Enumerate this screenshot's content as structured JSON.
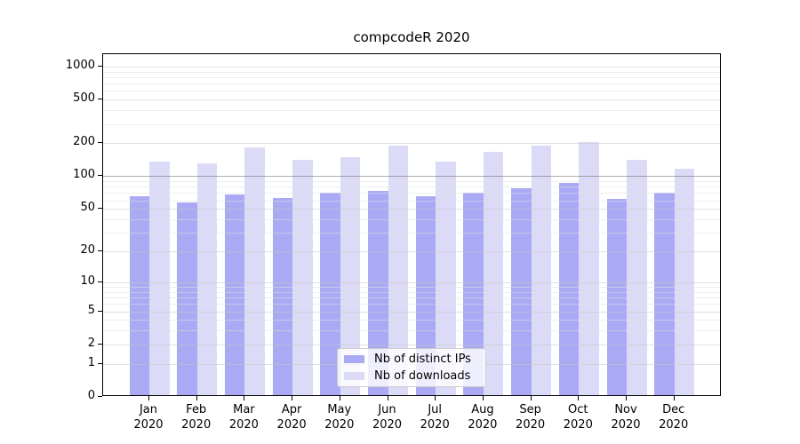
{
  "chart_data": {
    "type": "bar",
    "title": "compcodeR 2020",
    "categories": [
      {
        "month": "Jan",
        "year": "2020"
      },
      {
        "month": "Feb",
        "year": "2020"
      },
      {
        "month": "Mar",
        "year": "2020"
      },
      {
        "month": "Apr",
        "year": "2020"
      },
      {
        "month": "May",
        "year": "2020"
      },
      {
        "month": "Jun",
        "year": "2020"
      },
      {
        "month": "Jul",
        "year": "2020"
      },
      {
        "month": "Aug",
        "year": "2020"
      },
      {
        "month": "Sep",
        "year": "2020"
      },
      {
        "month": "Oct",
        "year": "2020"
      },
      {
        "month": "Nov",
        "year": "2020"
      },
      {
        "month": "Dec",
        "year": "2020"
      }
    ],
    "series": [
      {
        "name": "Nb of distinct IPs",
        "color": "#a9a9f4",
        "values": [
          66,
          57,
          68,
          63,
          71,
          73,
          66,
          71,
          78,
          86,
          62,
          70
        ]
      },
      {
        "name": "Nb of downloads",
        "color": "#dbdbf7",
        "values": [
          137,
          132,
          184,
          142,
          150,
          190,
          137,
          167,
          192,
          204,
          140,
          118
        ]
      }
    ],
    "y_axis": {
      "scale": "log1p",
      "ticks": [
        0,
        1,
        2,
        5,
        10,
        20,
        50,
        100,
        200,
        500,
        1000
      ],
      "minor_ticks": [
        3,
        4,
        6,
        7,
        8,
        9,
        30,
        40,
        60,
        70,
        80,
        90,
        300,
        400,
        600,
        700,
        800,
        900
      ],
      "emphasized_gridline": 100,
      "ylim": [
        0,
        1270
      ]
    },
    "legend_position": "bottom-center",
    "grid": true
  }
}
